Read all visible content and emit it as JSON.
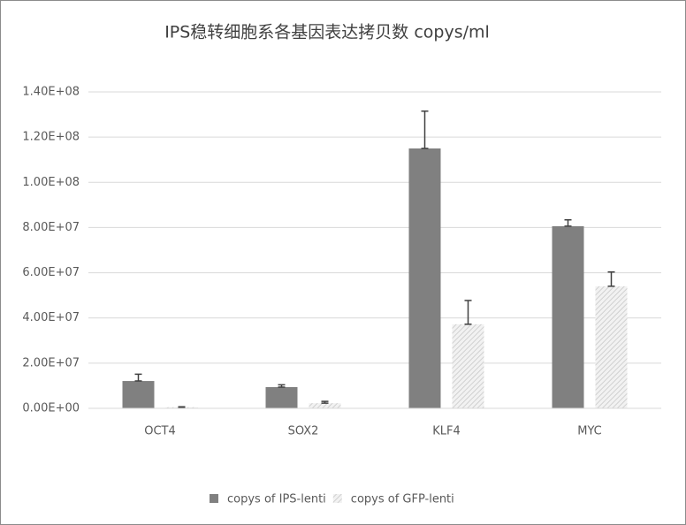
{
  "chart_data": {
    "type": "bar",
    "title": "IPS稳转细胞系各基因表达拷贝数 copys/ml",
    "categories": [
      "OCT4",
      "SOX2",
      "KLF4",
      "MYC"
    ],
    "series": [
      {
        "name": "copys of IPS-lenti",
        "color": "#808080",
        "values": [
          12100000,
          9400000,
          115000000,
          80600000
        ],
        "errors": [
          3000000,
          1000000,
          16500000,
          2800000
        ]
      },
      {
        "name": "copys of GFP-lenti",
        "color": "#d9d9d9",
        "hatch": true,
        "values": [
          500000,
          2300000,
          37200000,
          54000000
        ],
        "errors": [
          200000,
          800000,
          10500000,
          6300000
        ]
      }
    ],
    "ylim": [
      0,
      140000000
    ],
    "yticks": [
      {
        "value": 0,
        "label": "0.00E+00"
      },
      {
        "value": 20000000,
        "label": "2.00E+07"
      },
      {
        "value": 40000000,
        "label": "4.00E+07"
      },
      {
        "value": 60000000,
        "label": "6.00E+07"
      },
      {
        "value": 80000000,
        "label": "8.00E+07"
      },
      {
        "value": 100000000,
        "label": "1.00E+08"
      },
      {
        "value": 120000000,
        "label": "1.20E+08"
      },
      {
        "value": 140000000,
        "label": "1.40E+08"
      }
    ],
    "grid": true,
    "legend": "bottom"
  }
}
